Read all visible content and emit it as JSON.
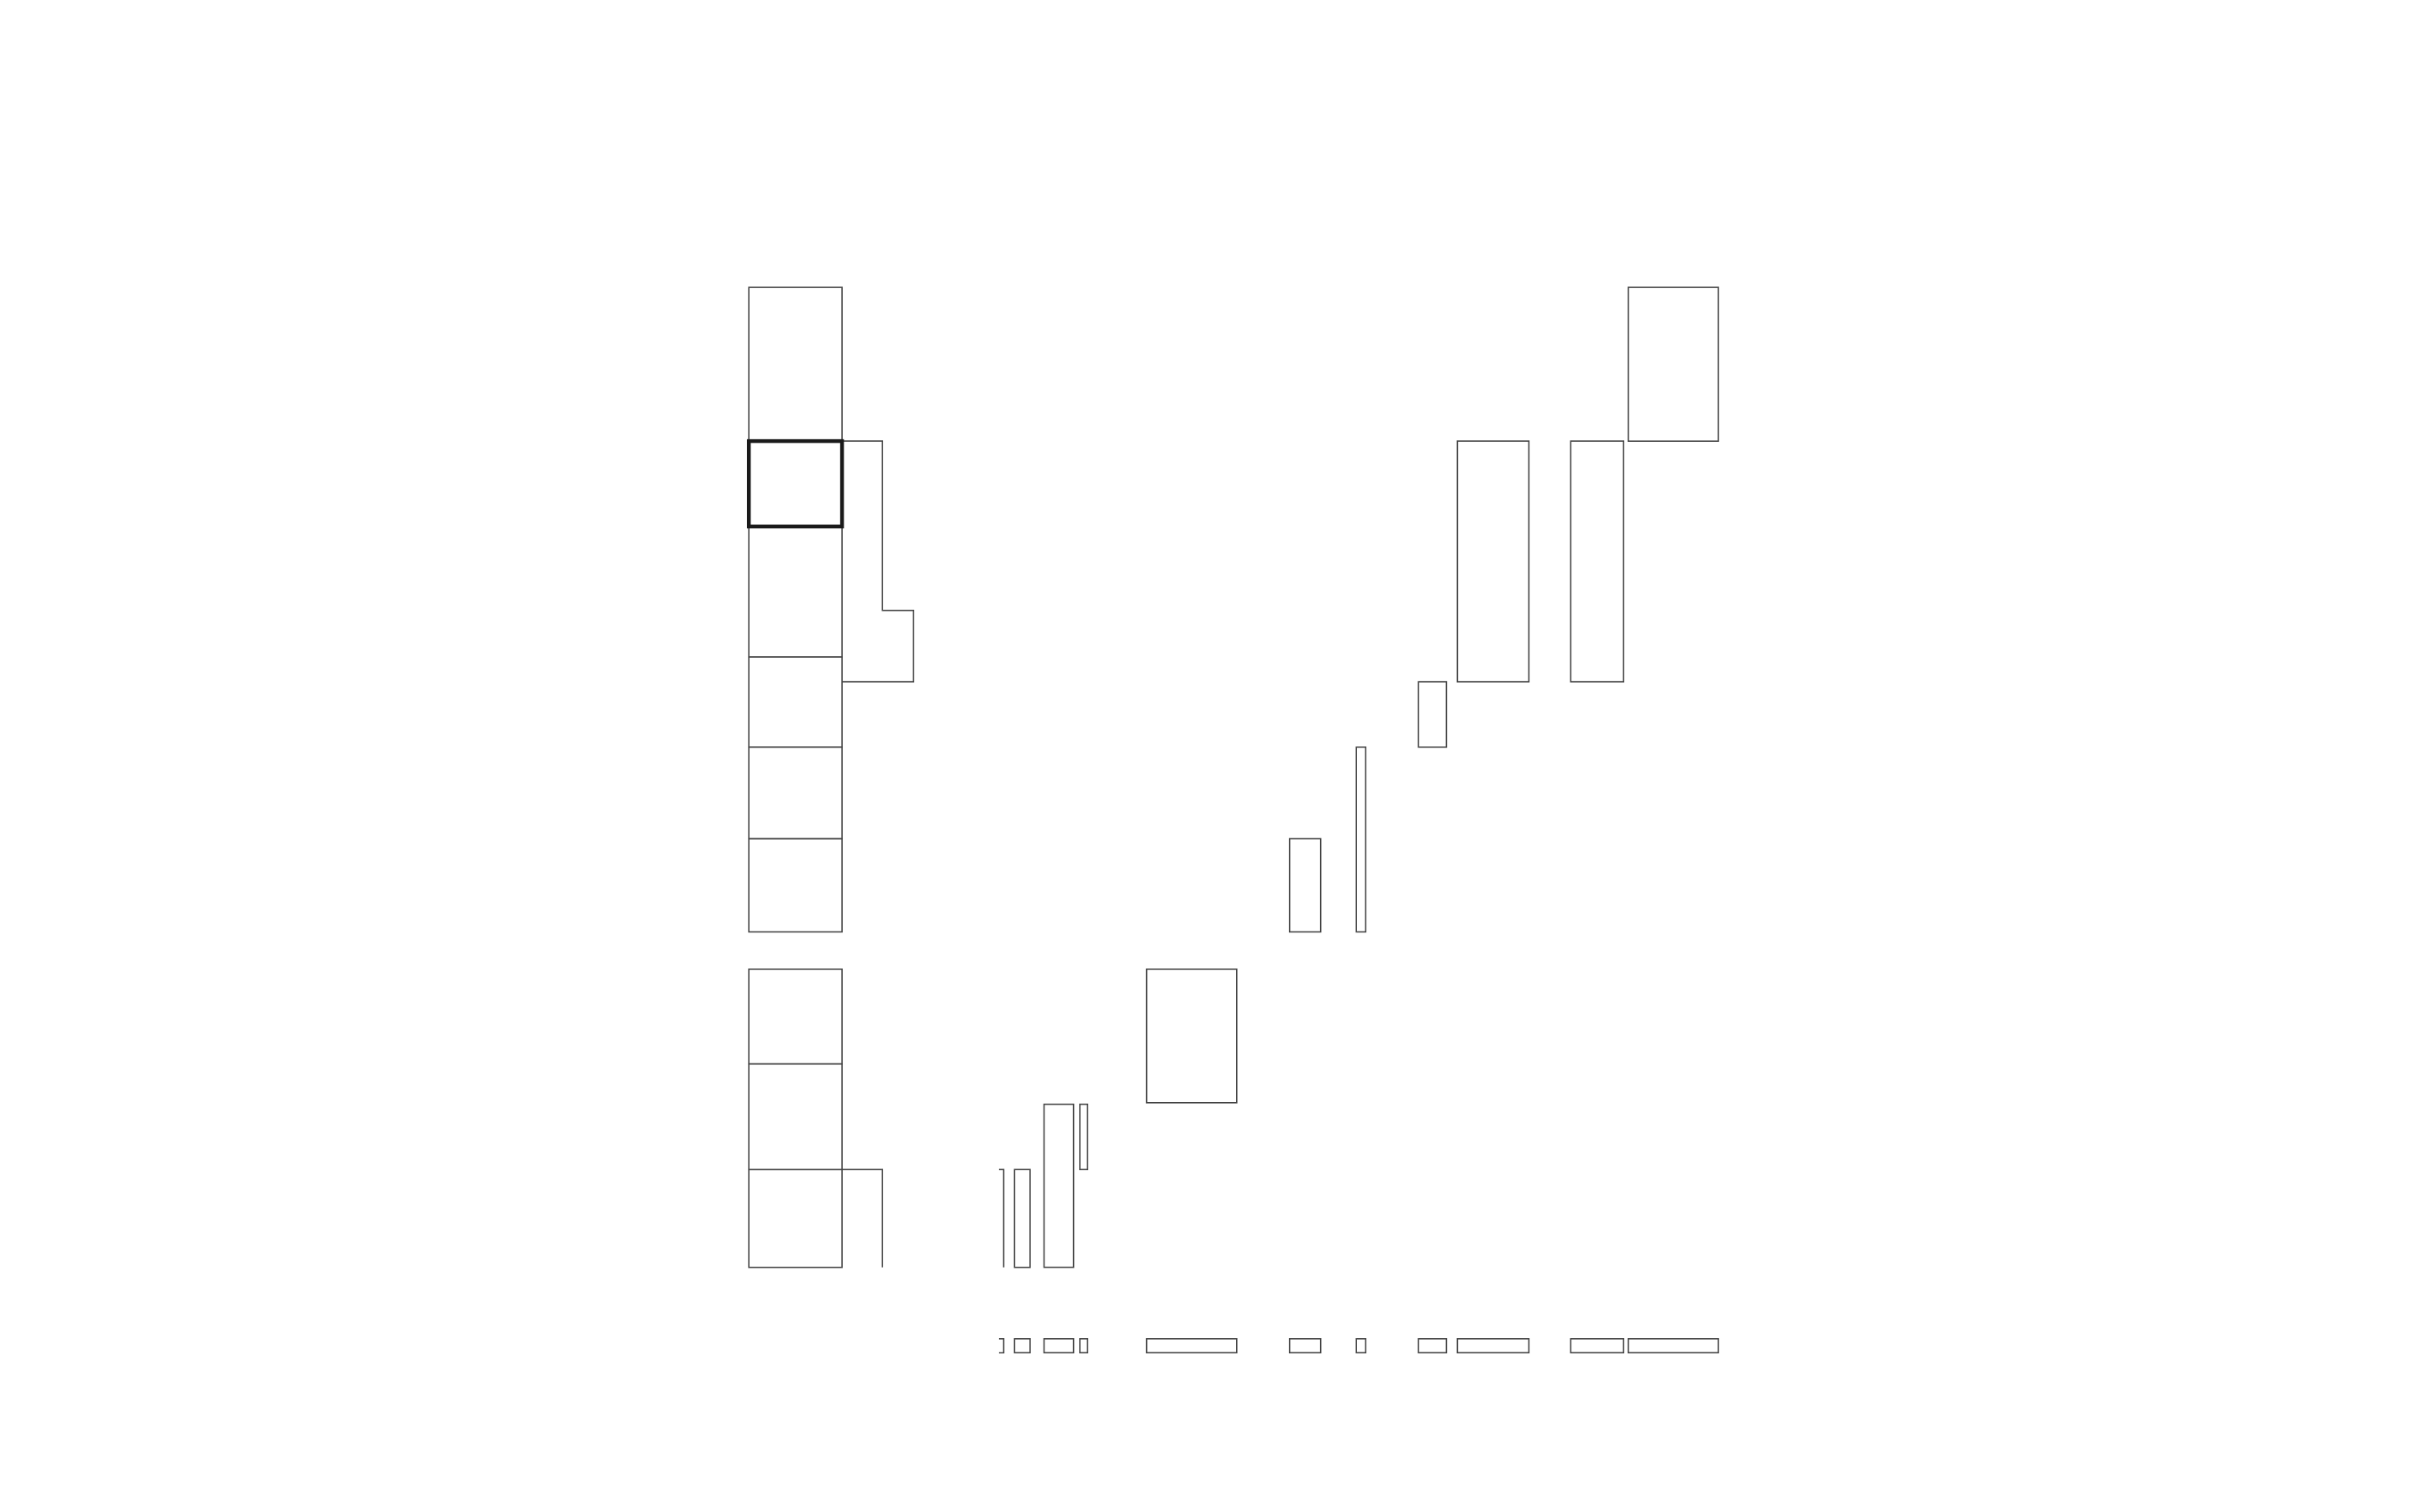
{
  "diagram": {
    "type": "block-layout-wireframe",
    "text_labels": [],
    "stroke_color": "#444444",
    "selected_stroke_color": "#1a1a1a",
    "background_color": "#ffffff",
    "left_column": {
      "upper_stack_cells": 6,
      "lower_stack_cells": 3,
      "selected_cell_index": 1
    },
    "blocks": {
      "count": 14,
      "selected": 1
    },
    "bottom_strip": {
      "count": 11
    }
  }
}
